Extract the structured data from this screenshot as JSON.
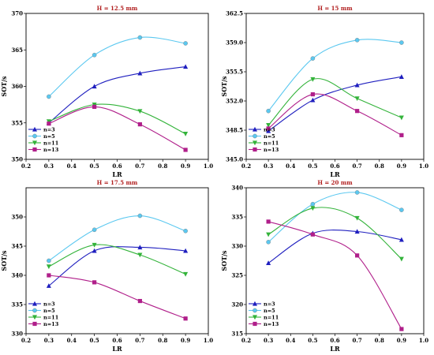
{
  "colors": {
    "n3": "#1f1fbf",
    "n5": "#5bc8f0",
    "n11": "#33b33a",
    "n13": "#b01f8a",
    "title": "#b22222"
  },
  "chart_data": [
    {
      "type": "line",
      "title": "H = 12.5 mm",
      "xlabel": "LR",
      "ylabel": "SOT/s",
      "xlim": [
        0.2,
        1.0
      ],
      "ylim": [
        350,
        370
      ],
      "xticks": [
        "0.2",
        "0.3",
        "0.4",
        "0.5",
        "0.6",
        "0.7",
        "0.8",
        "0.9",
        "1.0"
      ],
      "yticks": [
        "350",
        "355",
        "360",
        "365",
        "370"
      ],
      "legend_position": "bottom-left",
      "x": [
        0.3,
        0.5,
        0.7,
        0.9
      ],
      "series": [
        {
          "name": "n=3",
          "marker": "triangle-up",
          "values": [
            355.0,
            360.0,
            361.8,
            362.7
          ]
        },
        {
          "name": "n=5",
          "marker": "circle",
          "values": [
            358.6,
            364.3,
            366.7,
            365.9
          ]
        },
        {
          "name": "n=11",
          "marker": "triangle-down",
          "values": [
            355.2,
            357.5,
            356.6,
            353.5
          ]
        },
        {
          "name": "n=13",
          "marker": "square",
          "values": [
            354.9,
            357.2,
            354.8,
            351.3
          ]
        }
      ]
    },
    {
      "type": "line",
      "title": "H = 15 mm",
      "xlabel": "LR",
      "ylabel": "SOT/s",
      "xlim": [
        0.2,
        1.0
      ],
      "ylim": [
        345.0,
        362.5
      ],
      "xticks": [
        "0.2",
        "0.3",
        "0.4",
        "0.5",
        "0.6",
        "0.7",
        "0.8",
        "0.9",
        "1.0"
      ],
      "yticks": [
        "345.0",
        "348.5",
        "352.0",
        "355.5",
        "359.0",
        "362.5"
      ],
      "legend_position": "bottom-left",
      "x": [
        0.3,
        0.5,
        0.7,
        0.9
      ],
      "series": [
        {
          "name": "n=3",
          "marker": "triangle-up",
          "values": [
            348.4,
            352.1,
            353.9,
            354.9
          ]
        },
        {
          "name": "n=5",
          "marker": "circle",
          "values": [
            350.8,
            357.1,
            359.3,
            359.0
          ]
        },
        {
          "name": "n=11",
          "marker": "triangle-down",
          "values": [
            349.1,
            354.6,
            352.3,
            350.0
          ]
        },
        {
          "name": "n=13",
          "marker": "square",
          "values": [
            348.7,
            352.8,
            350.8,
            347.9
          ]
        }
      ]
    },
    {
      "type": "line",
      "title": "H = 17.5 mm",
      "xlabel": "LR",
      "ylabel": "SOT/s",
      "xlim": [
        0.2,
        1.0
      ],
      "ylim": [
        330,
        355
      ],
      "xticks": [
        "0.2",
        "0.3",
        "0.4",
        "0.5",
        "0.6",
        "0.7",
        "0.8",
        "0.9",
        "1.0"
      ],
      "yticks": [
        "330",
        "335",
        "340",
        "345",
        "350"
      ],
      "legend_position": "bottom-left",
      "x": [
        0.3,
        0.5,
        0.7,
        0.9
      ],
      "series": [
        {
          "name": "n=3",
          "marker": "triangle-up",
          "values": [
            338.2,
            344.2,
            344.8,
            344.2
          ]
        },
        {
          "name": "n=5",
          "marker": "circle",
          "values": [
            342.5,
            347.8,
            350.2,
            347.6
          ]
        },
        {
          "name": "n=11",
          "marker": "triangle-down",
          "values": [
            341.5,
            345.2,
            343.5,
            340.2
          ]
        },
        {
          "name": "n=13",
          "marker": "square",
          "values": [
            340.0,
            338.8,
            335.6,
            332.6
          ]
        }
      ]
    },
    {
      "type": "line",
      "title": "H = 20 mm",
      "xlabel": "LR",
      "ylabel": "SOT/s",
      "xlim": [
        0.2,
        1.0
      ],
      "ylim": [
        315,
        340
      ],
      "xticks": [
        "0.2",
        "0.3",
        "0.4",
        "0.5",
        "0.6",
        "0.7",
        "0.8",
        "0.9",
        "1.0"
      ],
      "yticks": [
        "315",
        "320",
        "325",
        "330",
        "335",
        "340"
      ],
      "legend_position": "bottom-left",
      "x": [
        0.3,
        0.5,
        0.7,
        0.9
      ],
      "series": [
        {
          "name": "n=3",
          "marker": "triangle-up",
          "values": [
            327.1,
            332.2,
            332.5,
            331.1
          ]
        },
        {
          "name": "n=5",
          "marker": "circle",
          "values": [
            330.7,
            337.2,
            339.2,
            336.2
          ]
        },
        {
          "name": "n=11",
          "marker": "triangle-down",
          "values": [
            332.0,
            336.5,
            334.8,
            327.8
          ]
        },
        {
          "name": "n=13",
          "marker": "square",
          "values": [
            334.2,
            332.0,
            328.4,
            315.8
          ]
        }
      ]
    }
  ]
}
